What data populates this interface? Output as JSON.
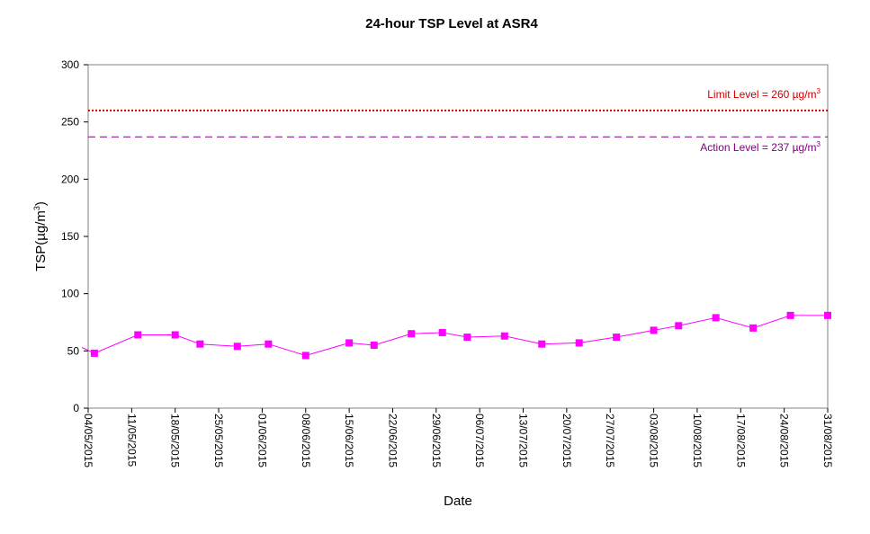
{
  "chart_data": {
    "type": "line",
    "title": "24-hour TSP Level at ASR4",
    "xlabel": "Date",
    "ylabel": {
      "prefix": "TSP(",
      "unit_base": "µg/m",
      "unit_sup": "3",
      "suffix": ")"
    },
    "ylim": [
      0,
      300
    ],
    "yticks": [
      0,
      50,
      100,
      150,
      200,
      250,
      300
    ],
    "xrange": [
      "04/05/2015",
      "31/08/2015"
    ],
    "xticks": [
      "04/05/2015",
      "11/05/2015",
      "18/05/2015",
      "25/05/2015",
      "01/06/2015",
      "08/06/2015",
      "15/06/2015",
      "22/06/2015",
      "29/06/2015",
      "06/07/2015",
      "13/07/2015",
      "20/07/2015",
      "27/07/2015",
      "03/08/2015",
      "10/08/2015",
      "17/08/2015",
      "24/08/2015",
      "31/08/2015"
    ],
    "grid": false,
    "legend": "none",
    "reference_lines": [
      {
        "label_prefix": "Limit Level  = 260 ",
        "unit_base": "µg/m",
        "unit_sup": "3",
        "value": 260,
        "color": "#cc0000",
        "style": "dotted"
      },
      {
        "label_prefix": "Action Level  = 237 ",
        "unit_base": "µg/m",
        "unit_sup": "3",
        "value": 237,
        "color": "#800080",
        "style": "dashed"
      }
    ],
    "series": [
      {
        "color": "#ff00ff",
        "marker": "square",
        "line_start": {
          "x": "03/05/2015",
          "y": 53
        },
        "points": [
          {
            "x": "05/05/2015",
            "y": 48
          },
          {
            "x": "12/05/2015",
            "y": 64
          },
          {
            "x": "18/05/2015",
            "y": 64
          },
          {
            "x": "22/05/2015",
            "y": 56
          },
          {
            "x": "28/05/2015",
            "y": 54
          },
          {
            "x": "02/06/2015",
            "y": 56
          },
          {
            "x": "08/06/2015",
            "y": 46
          },
          {
            "x": "15/06/2015",
            "y": 57
          },
          {
            "x": "19/06/2015",
            "y": 55
          },
          {
            "x": "25/06/2015",
            "y": 65
          },
          {
            "x": "30/06/2015",
            "y": 66
          },
          {
            "x": "04/07/2015",
            "y": 62
          },
          {
            "x": "10/07/2015",
            "y": 63
          },
          {
            "x": "16/07/2015",
            "y": 56
          },
          {
            "x": "22/07/2015",
            "y": 57
          },
          {
            "x": "28/07/2015",
            "y": 62
          },
          {
            "x": "03/08/2015",
            "y": 68
          },
          {
            "x": "07/08/2015",
            "y": 72
          },
          {
            "x": "13/08/2015",
            "y": 79
          },
          {
            "x": "19/08/2015",
            "y": 70
          },
          {
            "x": "25/08/2015",
            "y": 81
          },
          {
            "x": "31/08/2015",
            "y": 81
          }
        ]
      }
    ]
  }
}
